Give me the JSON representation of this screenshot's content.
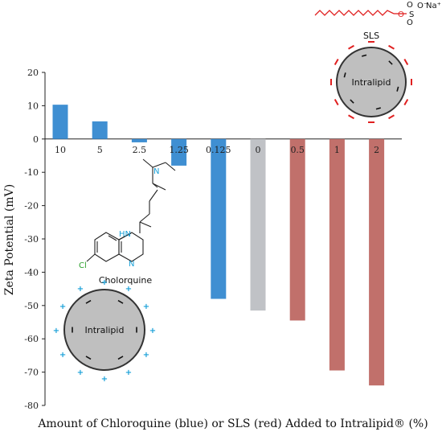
{
  "chart_data": {
    "type": "bar",
    "xlabel": "Amount of Chloroquine (blue) or SLS (red) Added to Intralipid® (%)",
    "ylabel": "Zeta Potential (mV)",
    "ylim": [
      -80,
      20
    ],
    "yticks": [
      20,
      10,
      0,
      -10,
      -20,
      -30,
      -40,
      -50,
      -60,
      -70,
      -80
    ],
    "categories": [
      "10",
      "5",
      "2.5",
      "1.25",
      "0.125",
      "0",
      "0.5",
      "1",
      "2"
    ],
    "values": [
      10.3,
      5.3,
      -1.0,
      -8.0,
      -48.0,
      -51.5,
      -54.5,
      -69.5,
      -74.0
    ],
    "bar_colors": [
      "#3f8fd2",
      "#3f8fd2",
      "#3f8fd2",
      "#3f8fd2",
      "#3f8fd2",
      "#c0c2c6",
      "#c1706b",
      "#c1706b",
      "#c1706b"
    ],
    "grid": false
  },
  "annotations": {
    "chloroquine_label": "Cholorquine",
    "chloroquine_atoms": {
      "nitrogen": "N",
      "amine": "HN",
      "chlorine": "Cl"
    },
    "sls_label": "SLS",
    "sls_sulfur": "S",
    "sls_oxygen": "O",
    "sls_oxy_minus": "O⁻",
    "sls_sodium": "Na⁺",
    "droplet_label": "Intralipid",
    "plus_sign": "+",
    "minus_sign": "−"
  },
  "colors": {
    "chloroquine": "#3f8fd2",
    "sls": "#c1706b",
    "control": "#c0c2c6",
    "droplet_fill": "#bfbfbf",
    "chain": "#e02020",
    "plus_charge": "#18a0d8",
    "sls_charge": "#e02020"
  }
}
